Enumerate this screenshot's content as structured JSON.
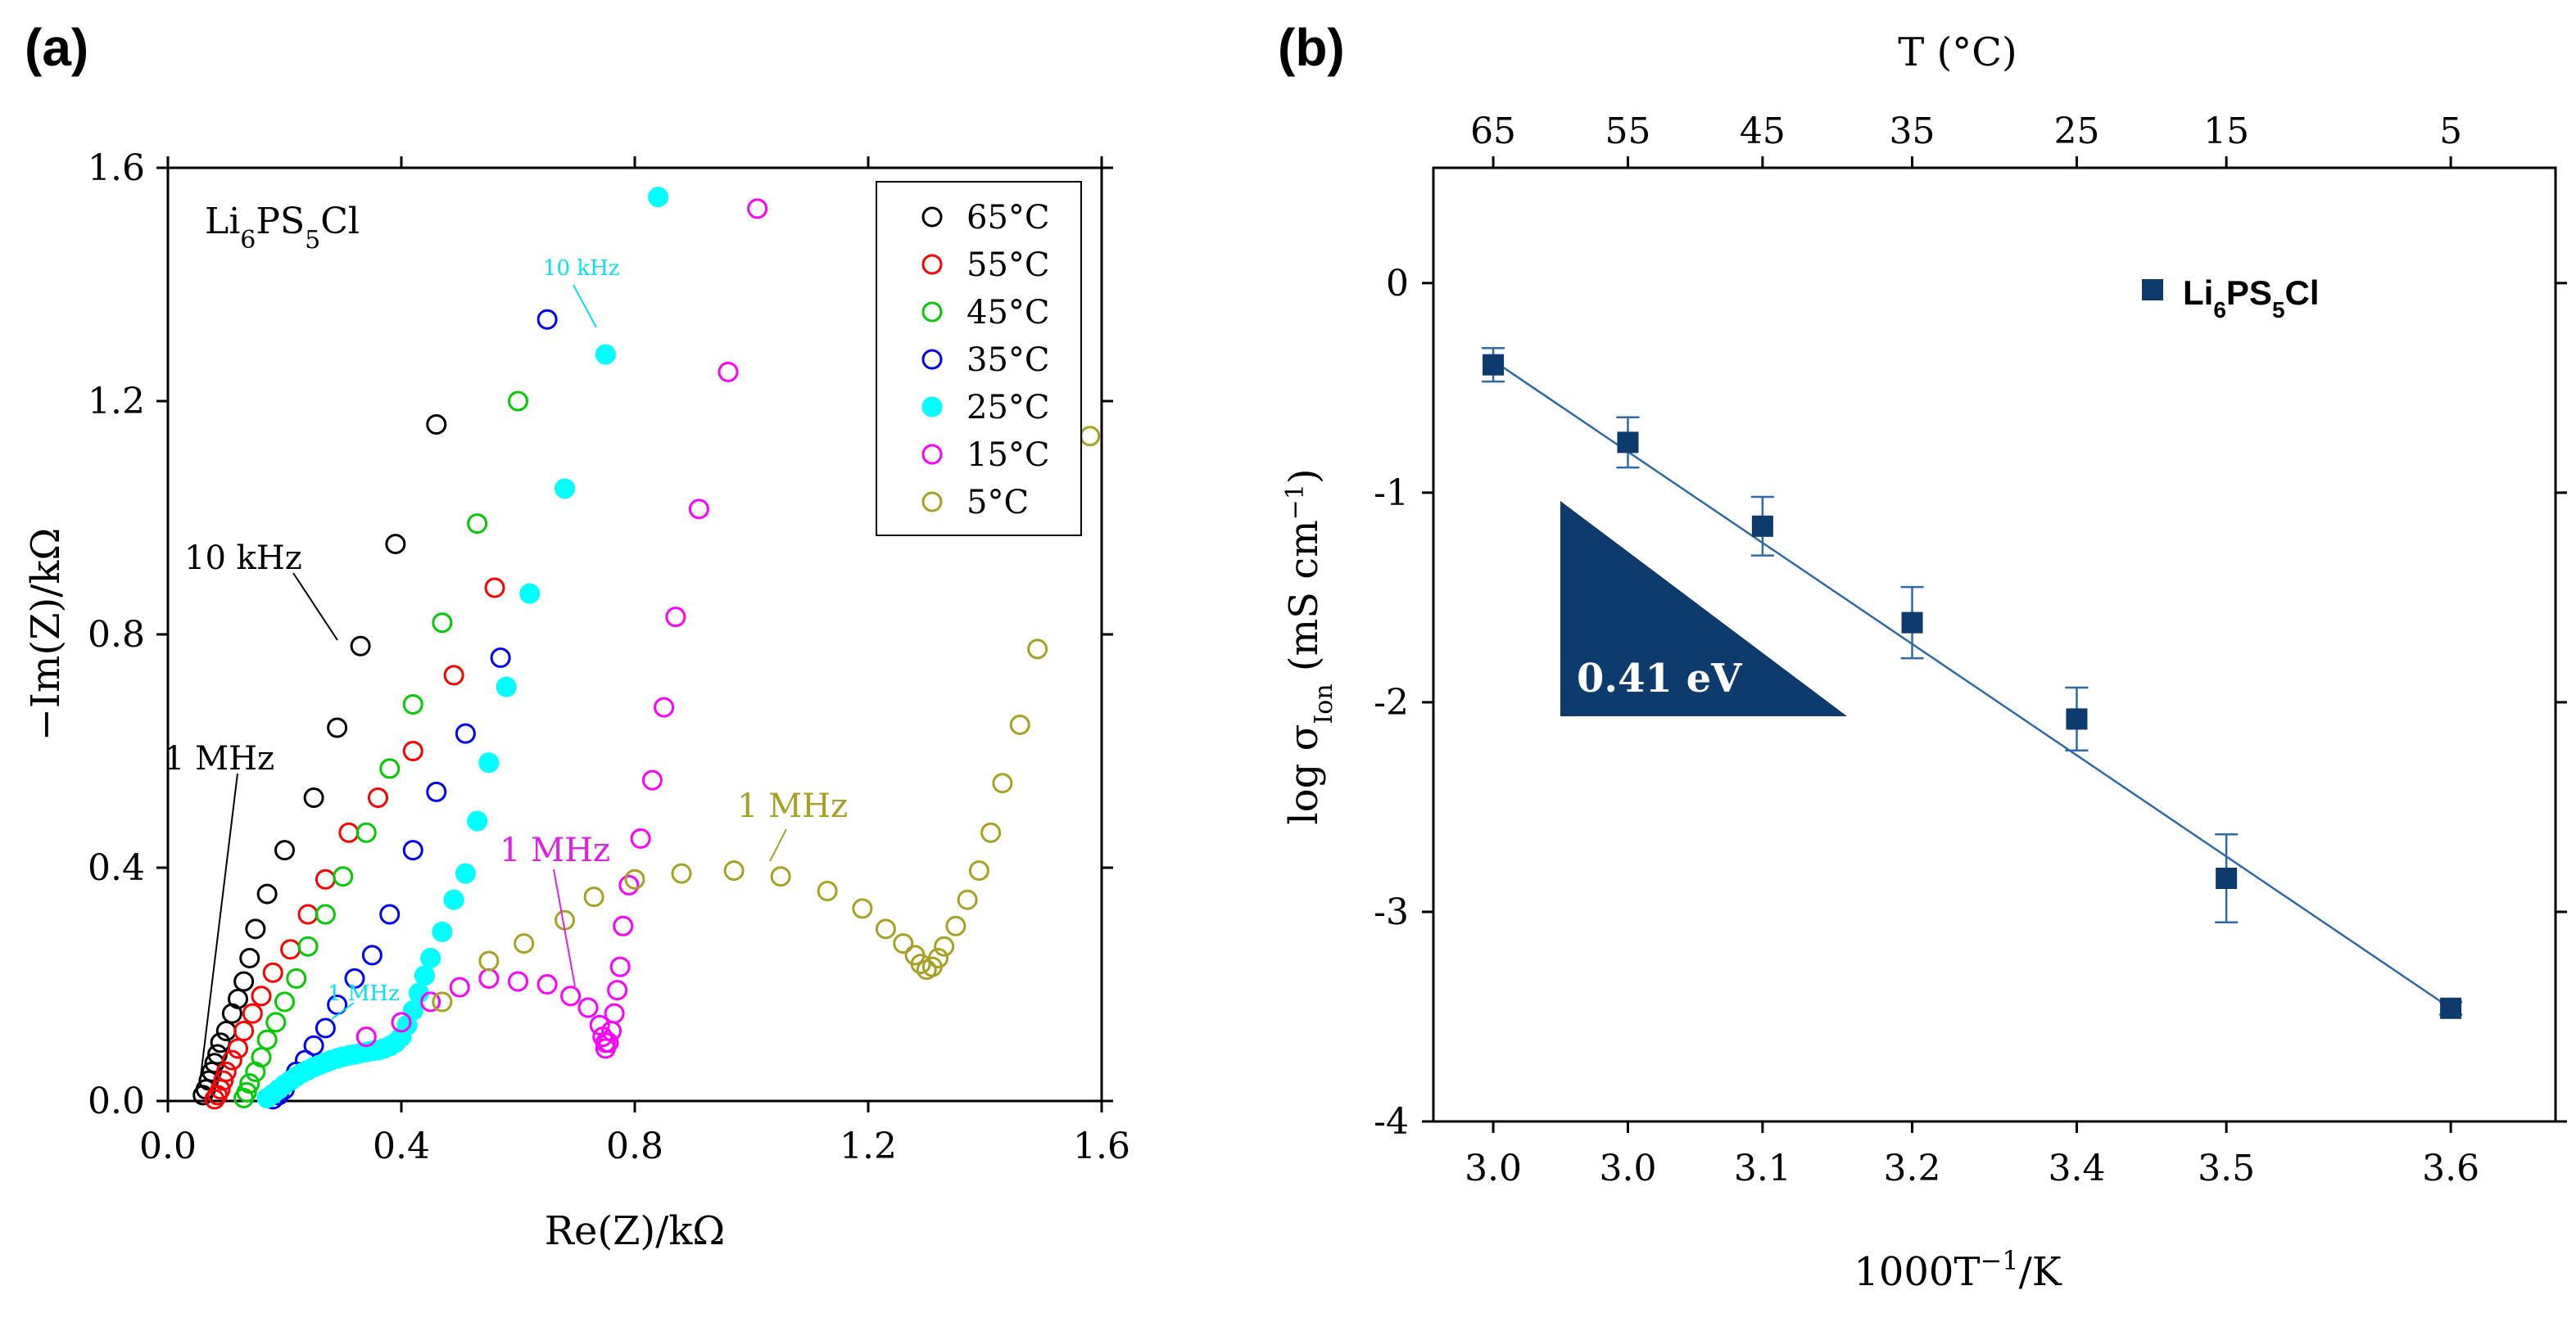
{
  "panels": {
    "a": {
      "label": "(a)"
    },
    "b": {
      "label": "(b)"
    }
  },
  "chart_data": [
    {
      "type": "scatter",
      "title": "",
      "panel": "(a)",
      "xlabel": "Re(Z)/kΩ",
      "ylabel": "−Im(Z)/kΩ",
      "xlim": [
        0,
        1.6
      ],
      "ylim": [
        0,
        1.6
      ],
      "xticks": [
        "0.0",
        "0.4",
        "0.8",
        "1.2",
        "1.6"
      ],
      "yticks": [
        "0.0",
        "0.4",
        "0.8",
        "1.2",
        "1.6"
      ],
      "material": {
        "base": "Li",
        "s1": "6",
        "mid": "PS",
        "s2": "5",
        "end": "Cl"
      },
      "legend_position": "top-right",
      "series": [
        {
          "name": "65°C",
          "color": "#000000",
          "filled": false,
          "x": [
            0.06,
            0.065,
            0.07,
            0.075,
            0.08,
            0.085,
            0.09,
            0.1,
            0.11,
            0.12,
            0.13,
            0.14,
            0.15,
            0.17,
            0.2,
            0.25,
            0.29,
            0.33,
            0.39,
            0.46
          ],
          "y": [
            0.01,
            0.02,
            0.035,
            0.05,
            0.065,
            0.08,
            0.1,
            0.12,
            0.15,
            0.175,
            0.205,
            0.245,
            0.295,
            0.355,
            0.43,
            0.52,
            0.64,
            0.78,
            0.955,
            1.16
          ]
        },
        {
          "name": "55°C",
          "color": "#ff0000",
          "filled": false,
          "x": [
            0.08,
            0.085,
            0.09,
            0.095,
            0.1,
            0.11,
            0.12,
            0.13,
            0.145,
            0.16,
            0.18,
            0.21,
            0.24,
            0.27,
            0.31,
            0.36,
            0.42,
            0.49,
            0.56
          ],
          "y": [
            0.003,
            0.01,
            0.02,
            0.035,
            0.05,
            0.07,
            0.09,
            0.12,
            0.15,
            0.18,
            0.22,
            0.26,
            0.32,
            0.38,
            0.46,
            0.52,
            0.6,
            0.73,
            0.88
          ]
        },
        {
          "name": "45°C",
          "color": "#00cc00",
          "filled": false,
          "x": [
            0.13,
            0.135,
            0.14,
            0.15,
            0.16,
            0.17,
            0.185,
            0.2,
            0.22,
            0.24,
            0.27,
            0.3,
            0.34,
            0.38,
            0.42,
            0.47,
            0.53,
            0.6
          ],
          "y": [
            0.005,
            0.015,
            0.03,
            0.05,
            0.075,
            0.105,
            0.135,
            0.17,
            0.21,
            0.265,
            0.32,
            0.385,
            0.46,
            0.57,
            0.68,
            0.82,
            0.99,
            1.2
          ]
        },
        {
          "name": "35°C",
          "color": "#0000ff",
          "filled": false,
          "x": [
            0.18,
            0.19,
            0.2,
            0.21,
            0.22,
            0.235,
            0.25,
            0.27,
            0.29,
            0.32,
            0.35,
            0.38,
            0.42,
            0.46,
            0.51,
            0.57,
            0.65
          ],
          "y": [
            0.003,
            0.01,
            0.02,
            0.035,
            0.05,
            0.07,
            0.095,
            0.125,
            0.165,
            0.21,
            0.25,
            0.32,
            0.43,
            0.53,
            0.63,
            0.76,
            1.34
          ]
        },
        {
          "name": "25°C",
          "color": "#00ffff",
          "filled": true,
          "x": [
            0.17,
            0.18,
            0.19,
            0.2,
            0.21,
            0.22,
            0.23,
            0.24,
            0.25,
            0.26,
            0.27,
            0.28,
            0.29,
            0.3,
            0.31,
            0.32,
            0.33,
            0.34,
            0.35,
            0.36,
            0.37,
            0.38,
            0.39,
            0.4,
            0.41,
            0.42,
            0.43,
            0.44,
            0.45,
            0.47,
            0.49,
            0.51,
            0.53,
            0.55,
            0.58,
            0.62,
            0.68,
            0.75,
            0.84
          ],
          "y": [
            0.005,
            0.012,
            0.02,
            0.028,
            0.035,
            0.042,
            0.048,
            0.053,
            0.058,
            0.062,
            0.066,
            0.07,
            0.073,
            0.076,
            0.078,
            0.08,
            0.082,
            0.084,
            0.086,
            0.087,
            0.09,
            0.094,
            0.1,
            0.11,
            0.13,
            0.155,
            0.185,
            0.215,
            0.245,
            0.29,
            0.345,
            0.39,
            0.48,
            0.58,
            0.71,
            0.87,
            1.05,
            1.28,
            1.55
          ]
        },
        {
          "name": "15°C",
          "color": "#ff00ff",
          "filled": false,
          "x": [
            0.34,
            0.4,
            0.45,
            0.5,
            0.55,
            0.6,
            0.65,
            0.69,
            0.72,
            0.74,
            0.745,
            0.75,
            0.75,
            0.755,
            0.76,
            0.765,
            0.77,
            0.775,
            0.78,
            0.79,
            0.81,
            0.83,
            0.85,
            0.87,
            0.91,
            0.96,
            1.01
          ],
          "y": [
            0.11,
            0.135,
            0.17,
            0.195,
            0.21,
            0.205,
            0.2,
            0.18,
            0.16,
            0.13,
            0.11,
            0.1,
            0.09,
            0.1,
            0.12,
            0.15,
            0.19,
            0.23,
            0.3,
            0.37,
            0.45,
            0.55,
            0.675,
            0.83,
            1.015,
            1.25,
            1.53
          ]
        },
        {
          "name": "5°C",
          "color": "#a8a020",
          "filled": false,
          "x": [
            0.47,
            0.55,
            0.61,
            0.68,
            0.73,
            0.8,
            0.88,
            0.97,
            1.05,
            1.13,
            1.19,
            1.23,
            1.26,
            1.28,
            1.29,
            1.3,
            1.31,
            1.32,
            1.33,
            1.35,
            1.37,
            1.39,
            1.41,
            1.43,
            1.46,
            1.49,
            1.58
          ],
          "y": [
            0.17,
            0.24,
            0.27,
            0.31,
            0.35,
            0.38,
            0.39,
            0.395,
            0.385,
            0.36,
            0.33,
            0.295,
            0.27,
            0.25,
            0.235,
            0.225,
            0.23,
            0.245,
            0.265,
            0.3,
            0.345,
            0.395,
            0.46,
            0.545,
            0.645,
            0.775,
            1.14
          ]
        }
      ],
      "annotations": [
        {
          "text": "10 kHz",
          "color": "#000000"
        },
        {
          "text": "1 MHz",
          "color": "#000000"
        },
        {
          "text": "10 kHz",
          "color": "#00e5ee"
        },
        {
          "text": "1 MHz",
          "color": "#00e5ee"
        },
        {
          "text": "1 MHz",
          "color": "#e020e0"
        },
        {
          "text": "1 MHz",
          "color": "#a8a020"
        }
      ]
    },
    {
      "type": "scatter",
      "title": "",
      "panel": "(b)",
      "xlabel": "1000T",
      "xlabel_sup": "−1",
      "xlabel_end": "/K",
      "ylabel": "log σ",
      "ylabel_sub": "Ion",
      "ylabel_unit": " (mS cm",
      "ylabel_sup": "−1",
      "ylabel_end": ")",
      "top_xlabel": "T (°C)",
      "xlim": [
        2.92,
        3.67
      ],
      "ylim": [
        -4,
        0.55
      ],
      "xticks": [
        "3.0",
        "3.0",
        "3.1",
        "3.2",
        "3.4",
        "3.5",
        "3.6"
      ],
      "yticks": [
        "-4",
        "-3",
        "-2",
        "-1",
        "0"
      ],
      "top_ticks": [
        "65",
        "55",
        "45",
        "35",
        "25",
        "15",
        "5"
      ],
      "series": [
        {
          "name": "Li6PS5Cl",
          "color": "#0d3b6e",
          "x": [
            2.96,
            3.05,
            3.14,
            3.24,
            3.35,
            3.45,
            3.6
          ],
          "y": [
            -0.39,
            -0.76,
            -1.16,
            -1.62,
            -2.08,
            -2.84,
            -3.46
          ],
          "err": [
            0.08,
            0.12,
            0.14,
            0.17,
            0.15,
            0.21,
            0.03
          ]
        }
      ],
      "fit_line": {
        "x": [
          2.96,
          3.6
        ],
        "y": [
          -0.37,
          -3.46
        ]
      },
      "activation_energy": "0.41 eV",
      "legend": {
        "base": "Li",
        "s1": "6",
        "mid": "PS",
        "s2": "5",
        "end": "Cl"
      }
    }
  ]
}
